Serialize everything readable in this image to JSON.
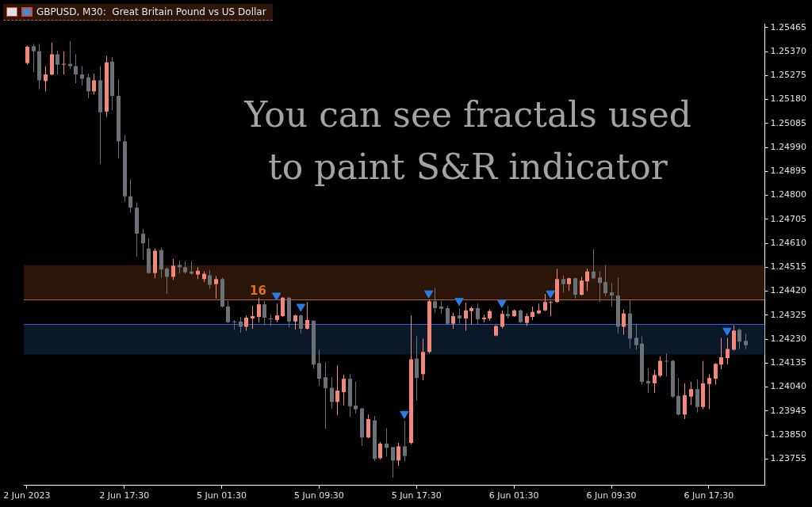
{
  "chart_data": {
    "type": "candlestick",
    "title": "GBPUSD, M30:  Great Britain Pound vs US Dollar",
    "annotations": [
      "You can see fractals used to paint S&R indicator",
      {
        "text": "16",
        "y": 1.24388
      }
    ],
    "categories": [
      "2 Jun 2023",
      null,
      null,
      null,
      null,
      null,
      null,
      null,
      null,
      null,
      null,
      null,
      null,
      null,
      null,
      null,
      "2 Jun 17:30",
      null,
      null,
      null,
      null,
      null,
      null,
      null,
      null,
      null,
      null,
      null,
      null,
      null,
      null,
      null,
      "5 Jun 01:30",
      null,
      null,
      null,
      null,
      null,
      null,
      null,
      null,
      null,
      null,
      null,
      null,
      null,
      null,
      null,
      "5 Jun 09:30",
      null,
      null,
      null,
      null,
      null,
      null,
      null,
      null,
      null,
      null,
      null,
      null,
      null,
      null,
      null,
      "5 Jun 17:30",
      null,
      null,
      null,
      null,
      null,
      null,
      null,
      null,
      null,
      null,
      null,
      null,
      null,
      null,
      null,
      "6 Jun 01:30",
      null,
      null,
      null,
      null,
      null,
      null,
      null,
      null,
      null,
      null,
      null,
      null,
      null,
      null,
      null,
      "6 Jun 09:30",
      null,
      null,
      null,
      null,
      null,
      null,
      null,
      null,
      null,
      null,
      null,
      null,
      null,
      null,
      null,
      "6 Jun 17:30",
      null,
      null,
      null,
      null,
      null,
      null
    ],
    "series": [
      {
        "ohlc": [
          [
            1.25324,
            1.25394,
            1.25318,
            1.25389
          ],
          [
            1.25391,
            1.254,
            1.25288,
            1.25371
          ],
          [
            1.25371,
            1.254,
            1.2522,
            1.25256
          ],
          [
            1.25253,
            1.25312,
            1.25212,
            1.25279
          ],
          [
            1.25279,
            1.25406,
            1.25276,
            1.25359
          ],
          [
            1.25359,
            1.25374,
            1.25279,
            1.25318
          ],
          [
            1.25318,
            1.25371,
            1.25279,
            1.25321
          ],
          [
            1.25321,
            1.25412,
            1.253,
            1.25312
          ],
          [
            1.25312,
            1.25359,
            1.25244,
            1.25279
          ],
          [
            1.25279,
            1.25312,
            1.25235,
            1.25262
          ],
          [
            1.25268,
            1.25282,
            1.25185,
            1.25212
          ],
          [
            1.25212,
            1.25282,
            1.252,
            1.25256
          ],
          [
            1.25256,
            1.25312,
            1.24925,
            1.25129
          ],
          [
            1.25132,
            1.25353,
            1.25111,
            1.25327
          ],
          [
            1.2533,
            1.25347,
            1.25138,
            1.25194
          ],
          [
            1.25194,
            1.25259,
            1.24946,
            1.25014
          ],
          [
            1.25014,
            1.2504,
            1.24775,
            1.24796
          ],
          [
            1.24796,
            1.24863,
            1.24731,
            1.24751
          ],
          [
            1.24751,
            1.24772,
            1.24557,
            1.24648
          ],
          [
            1.24648,
            1.24666,
            1.24545,
            1.2461
          ],
          [
            1.24589,
            1.2463,
            1.24489,
            1.24492
          ],
          [
            1.24492,
            1.24589,
            1.24471,
            1.2458
          ],
          [
            1.24583,
            1.24592,
            1.24474,
            1.24506
          ],
          [
            1.24509,
            1.24515,
            1.24409,
            1.24477
          ],
          [
            1.24477,
            1.24548,
            1.24465,
            1.24521
          ],
          [
            1.24524,
            1.24542,
            1.24492,
            1.24515
          ],
          [
            1.24515,
            1.24539,
            1.24489,
            1.24495
          ],
          [
            1.24498,
            1.24539,
            1.24486,
            1.24489
          ],
          [
            1.24486,
            1.24515,
            1.24468,
            1.24501
          ],
          [
            1.24468,
            1.24498,
            1.24456,
            1.24489
          ],
          [
            1.24483,
            1.24504,
            1.2443,
            1.24445
          ],
          [
            1.24448,
            1.2448,
            1.24391,
            1.24468
          ],
          [
            1.24468,
            1.24474,
            1.24356,
            1.24359
          ],
          [
            1.24359,
            1.24382,
            1.24294,
            1.24297
          ],
          [
            1.243,
            1.24306,
            1.24267,
            1.24297
          ],
          [
            1.243,
            1.24318,
            1.24256,
            1.24279
          ],
          [
            1.24279,
            1.24324,
            1.24264,
            1.24315
          ],
          [
            1.24312,
            1.24362,
            1.24271,
            1.24321
          ],
          [
            1.24318,
            1.24394,
            1.24297,
            1.24368
          ],
          [
            1.24368,
            1.24382,
            1.24285,
            1.24315
          ],
          [
            1.24312,
            1.24327,
            1.24282,
            1.24309
          ],
          [
            1.24306,
            1.24371,
            1.24297,
            1.24324
          ],
          [
            1.24321,
            1.24397,
            1.24318,
            1.24394
          ],
          [
            1.24394,
            1.24397,
            1.24276,
            1.243
          ],
          [
            1.243,
            1.24327,
            1.24267,
            1.24324
          ],
          [
            1.24324,
            1.24327,
            1.24253,
            1.24271
          ],
          [
            1.24271,
            1.24377,
            1.24267,
            1.24306
          ],
          [
            1.24303,
            1.24303,
            1.24114,
            1.24129
          ],
          [
            1.24135,
            1.24188,
            1.24046,
            1.24073
          ],
          [
            1.24079,
            1.24138,
            1.23875,
            1.24035
          ],
          [
            1.24037,
            1.24079,
            1.23952,
            1.23981
          ],
          [
            1.23981,
            1.24126,
            1.23928,
            1.24026
          ],
          [
            1.2402,
            1.24088,
            1.23967,
            1.24073
          ],
          [
            1.24073,
            1.24091,
            1.23922,
            1.23964
          ],
          [
            1.23967,
            1.24061,
            1.23934,
            1.23952
          ],
          [
            1.23955,
            1.23958,
            1.23807,
            1.2384
          ],
          [
            1.2384,
            1.23931,
            1.23837,
            1.23913
          ],
          [
            1.23908,
            1.23925,
            1.23747,
            1.23755
          ],
          [
            1.23758,
            1.23822,
            1.23752,
            1.23816
          ],
          [
            1.23816,
            1.23877,
            1.23764,
            1.23799
          ],
          [
            1.23802,
            1.23802,
            1.23681,
            1.23749
          ],
          [
            1.23749,
            1.23819,
            1.23728,
            1.23805
          ],
          [
            1.23805,
            1.23905,
            1.23747,
            1.23767
          ],
          [
            1.23819,
            1.24324,
            1.23813,
            1.2415
          ],
          [
            1.24153,
            1.24241,
            1.23987,
            1.24076
          ],
          [
            1.24091,
            1.24232,
            1.24067,
            1.24179
          ],
          [
            1.24179,
            1.24386,
            1.24173,
            1.2438
          ],
          [
            1.2438,
            1.24433,
            1.24335,
            1.24353
          ],
          [
            1.24359,
            1.24382,
            1.2433,
            1.2435
          ],
          [
            1.24353,
            1.24362,
            1.24288,
            1.24291
          ],
          [
            1.24291,
            1.24335,
            1.24271,
            1.24321
          ],
          [
            1.24324,
            1.2435,
            1.24291,
            1.24312
          ],
          [
            1.24312,
            1.24374,
            1.24264,
            1.24344
          ],
          [
            1.24341,
            1.24359,
            1.24288,
            1.24353
          ],
          [
            1.24353,
            1.24371,
            1.24288,
            1.24309
          ],
          [
            1.24309,
            1.24327,
            1.24297,
            1.24315
          ],
          [
            1.24312,
            1.24347,
            1.24303,
            1.24341
          ],
          [
            1.24244,
            1.24285,
            1.24241,
            1.24282
          ],
          [
            1.24279,
            1.24344,
            1.24273,
            1.2433
          ],
          [
            1.2433,
            1.24362,
            1.24312,
            1.24321
          ],
          [
            1.24321,
            1.24347,
            1.24318,
            1.24344
          ],
          [
            1.24344,
            1.24347,
            1.24294,
            1.24297
          ],
          [
            1.24294,
            1.24332,
            1.24282,
            1.24321
          ],
          [
            1.24318,
            1.24359,
            1.24306,
            1.24338
          ],
          [
            1.24332,
            1.24371,
            1.24329,
            1.24344
          ],
          [
            1.24344,
            1.24409,
            1.24341,
            1.24377
          ],
          [
            1.24374,
            1.24382,
            1.24321,
            1.24377
          ],
          [
            1.24377,
            1.24509,
            1.24374,
            1.24468
          ],
          [
            1.24468,
            1.24483,
            1.24415,
            1.24448
          ],
          [
            1.24448,
            1.24474,
            1.24421,
            1.24471
          ],
          [
            1.24471,
            1.24474,
            1.24391,
            1.24406
          ],
          [
            1.24406,
            1.24477,
            1.24403,
            1.24462
          ],
          [
            1.24459,
            1.24509,
            1.24421,
            1.24498
          ],
          [
            1.24498,
            1.24586,
            1.24468,
            1.24471
          ],
          [
            1.24474,
            1.24498,
            1.24377,
            1.24453
          ],
          [
            1.24456,
            1.24524,
            1.244,
            1.24412
          ],
          [
            1.24415,
            1.24451,
            1.24359,
            1.24403
          ],
          [
            1.24403,
            1.24474,
            1.24253,
            1.24279
          ],
          [
            1.24279,
            1.24347,
            1.24247,
            1.24332
          ],
          [
            1.24332,
            1.24386,
            1.24194,
            1.24232
          ],
          [
            1.24235,
            1.24291,
            1.24188,
            1.24206
          ],
          [
            1.24212,
            1.24241,
            1.24049,
            1.24061
          ],
          [
            1.24064,
            1.24114,
            1.24017,
            1.24055
          ],
          [
            1.24055,
            1.24108,
            1.24017,
            1.24088
          ],
          [
            1.24085,
            1.24161,
            1.24079,
            1.24144
          ],
          [
            1.24144,
            1.24173,
            1.24082,
            1.24141
          ],
          [
            1.24144,
            1.24147,
            1.23996,
            1.24002
          ],
          [
            1.24005,
            1.24076,
            1.23928,
            1.23931
          ],
          [
            1.23931,
            1.24055,
            1.23913,
            1.24008
          ],
          [
            1.24002,
            1.24061,
            1.2397,
            1.24032
          ],
          [
            1.24032,
            1.2407,
            1.2394,
            1.23961
          ],
          [
            1.23961,
            1.24144,
            1.23952,
            1.24055
          ],
          [
            1.24052,
            1.24091,
            1.23952,
            1.24076
          ],
          [
            1.24073,
            1.24135,
            1.24049,
            1.24132
          ],
          [
            1.24129,
            1.24235,
            1.24111,
            1.24158
          ],
          [
            1.24155,
            1.24235,
            1.24129,
            1.24191
          ],
          [
            1.24188,
            1.24285,
            1.24185,
            1.24264
          ],
          [
            1.24267,
            1.24273,
            1.24191,
            1.2422
          ],
          [
            1.24223,
            1.2425,
            1.24191,
            1.24206
          ]
        ],
        "colors": [
          "#f4877a",
          "#6c7178",
          "#6c7178",
          "#f4877a",
          "#f4877a",
          "#6c7178",
          "#f4877a",
          "#6c7178",
          "#6c7178",
          "#6c7178",
          "#6c7178",
          "#f4877a",
          "#6c7178",
          "#f4877a",
          "#6c7178",
          "#6c7178",
          "#6c7178",
          "#6c7178",
          "#6c7178",
          "#6c7178",
          "#6c7178",
          "#f4877a",
          "#6c7178",
          "#6c7178",
          "#f4877a",
          "#6c7178",
          "#6c7178",
          "#6c7178",
          "#f4877a",
          "#f4877a",
          "#6c7178",
          "#f4877a",
          "#6c7178",
          "#6c7178",
          "#6c7178",
          "#6c7178",
          "#f4877a",
          "#f4877a",
          "#f4877a",
          "#6c7178",
          "#6c7178",
          "#f4877a",
          "#f4877a",
          "#6c7178",
          "#f4877a",
          "#6c7178",
          "#f4877a",
          "#6c7178",
          "#6c7178",
          "#6c7178",
          "#6c7178",
          "#f4877a",
          "#f4877a",
          "#6c7178",
          "#6c7178",
          "#6c7178",
          "#f4877a",
          "#6c7178",
          "#f4877a",
          "#6c7178",
          "#6c7178",
          "#f4877a",
          "#6c7178",
          "#f4877a",
          "#6c7178",
          "#f4877a",
          "#f4877a",
          "#6c7178",
          "#6c7178",
          "#6c7178",
          "#f4877a",
          "#6c7178",
          "#f4877a",
          "#f4877a",
          "#6c7178",
          "#f4877a",
          "#f4877a",
          "#f4877a",
          "#f4877a",
          "#6c7178",
          "#f4877a",
          "#6c7178",
          "#f4877a",
          "#f4877a",
          "#f4877a",
          "#f4877a",
          "#f4877a",
          "#f4877a",
          "#6c7178",
          "#f4877a",
          "#6c7178",
          "#f4877a",
          "#f4877a",
          "#6c7178",
          "#6c7178",
          "#6c7178",
          "#6c7178",
          "#6c7178",
          "#f4877a",
          "#6c7178",
          "#6c7178",
          "#6c7178",
          "#6c7178",
          "#f4877a",
          "#f4877a",
          "#6c7178",
          "#6c7178",
          "#6c7178",
          "#f4877a",
          "#f4877a",
          "#6c7178",
          "#f4877a",
          "#f4877a",
          "#f4877a",
          "#f4877a",
          "#f4877a",
          "#f4877a",
          "#6c7178",
          "#6c7178"
        ]
      },
      {
        "type": "scatter",
        "color": "#2a7de1",
        "marker": "triangle",
        "values": [
          null,
          null,
          null,
          null,
          null,
          null,
          null,
          null,
          null,
          null,
          null,
          null,
          null,
          null,
          null,
          null,
          null,
          null,
          null,
          null,
          null,
          null,
          null,
          null,
          null,
          null,
          null,
          null,
          null,
          null,
          null,
          null,
          null,
          null,
          null,
          null,
          null,
          null,
          null,
          null,
          null,
          1.24403,
          null,
          null,
          null,
          1.24359,
          null,
          null,
          null,
          null,
          null,
          null,
          null,
          null,
          null,
          null,
          null,
          null,
          null,
          null,
          null,
          null,
          1.23934,
          null,
          null,
          null,
          1.24412,
          null,
          null,
          null,
          null,
          1.24382,
          null,
          null,
          null,
          null,
          null,
          null,
          1.24374,
          null,
          null,
          null,
          null,
          null,
          null,
          null,
          1.24412,
          null,
          null,
          null,
          null,
          null,
          null,
          null,
          null,
          null,
          null,
          null,
          null,
          null,
          null,
          null,
          null,
          null,
          null,
          null,
          null,
          null,
          null,
          null,
          null,
          null,
          null,
          null,
          null,
          1.24264,
          null,
          null,
          null
        ]
      }
    ],
    "ylim": [
      1.2365,
      1.2548
    ],
    "yticks": [
      1.23755,
      {
        "value": 1.2385,
        "label": "1.23850"
      },
      1.23945,
      {
        "value": 1.2404,
        "label": "1.24040"
      },
      1.24135,
      {
        "value": 1.2423,
        "label": "1.24230"
      },
      1.24325,
      {
        "value": 1.2442,
        "label": "1.24420"
      },
      1.24515,
      {
        "value": 1.2461,
        "label": "1.24610"
      },
      1.24705,
      {
        "value": 1.248,
        "label": "1.24800"
      },
      1.24895,
      {
        "value": 1.2499,
        "label": "1.24990"
      },
      1.25085,
      {
        "value": 1.2518,
        "label": "1.25180"
      },
      1.25275,
      {
        "value": 1.2537,
        "label": "1.25370"
      },
      1.25465
    ],
    "ref_lines": [
      {
        "axis": "y",
        "value": 1.2429,
        "color": "#2062e0"
      },
      {
        "axis": "y",
        "value": 1.24388,
        "color": "#b8642a"
      }
    ],
    "bands": [
      {
        "axis": "y",
        "from": 1.24169,
        "to": 1.2429,
        "color": "#0b1828"
      },
      {
        "axis": "y",
        "from": 1.24388,
        "to": 1.24523,
        "color": "#2c160a"
      }
    ]
  }
}
